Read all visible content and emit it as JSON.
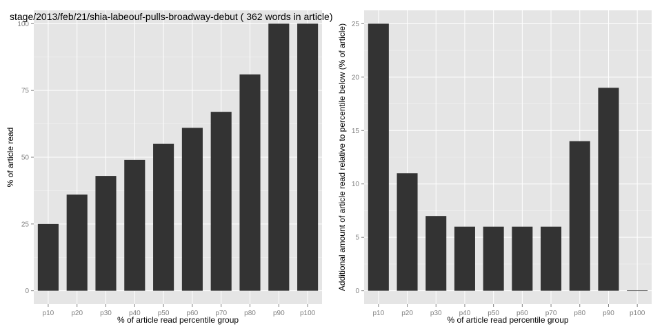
{
  "chart_data": [
    {
      "type": "bar",
      "title": "stage/2013/feb/21/shia-labeouf-pulls-broadway-debut ( 362 words in article)",
      "xlabel": "% of article read percentile group",
      "ylabel": "% of article read",
      "categories": [
        "p10",
        "p20",
        "p30",
        "p40",
        "p50",
        "p60",
        "p70",
        "p80",
        "p90",
        "p100"
      ],
      "values": [
        25,
        36,
        43,
        49,
        55,
        61,
        67,
        81,
        100,
        100
      ],
      "ylim": [
        -5,
        105
      ],
      "yticks": [
        0,
        25,
        50,
        75,
        100
      ],
      "grid": true,
      "bar_color": "#333333",
      "panel_color": "#e5e5e5"
    },
    {
      "type": "bar",
      "title": "",
      "xlabel": "% of article read percentile group",
      "ylabel": "Additional amount of article read relative to percentile below (% of article)",
      "categories": [
        "p10",
        "p20",
        "p30",
        "p40",
        "p50",
        "p60",
        "p70",
        "p80",
        "p90",
        "p100"
      ],
      "values": [
        25,
        11,
        7,
        6,
        6,
        6,
        6,
        14,
        19,
        0
      ],
      "ylim": [
        -1.25,
        26.25
      ],
      "yticks": [
        0,
        5,
        10,
        15,
        20,
        25
      ],
      "grid": true,
      "bar_color": "#333333",
      "panel_color": "#e5e5e5"
    }
  ]
}
